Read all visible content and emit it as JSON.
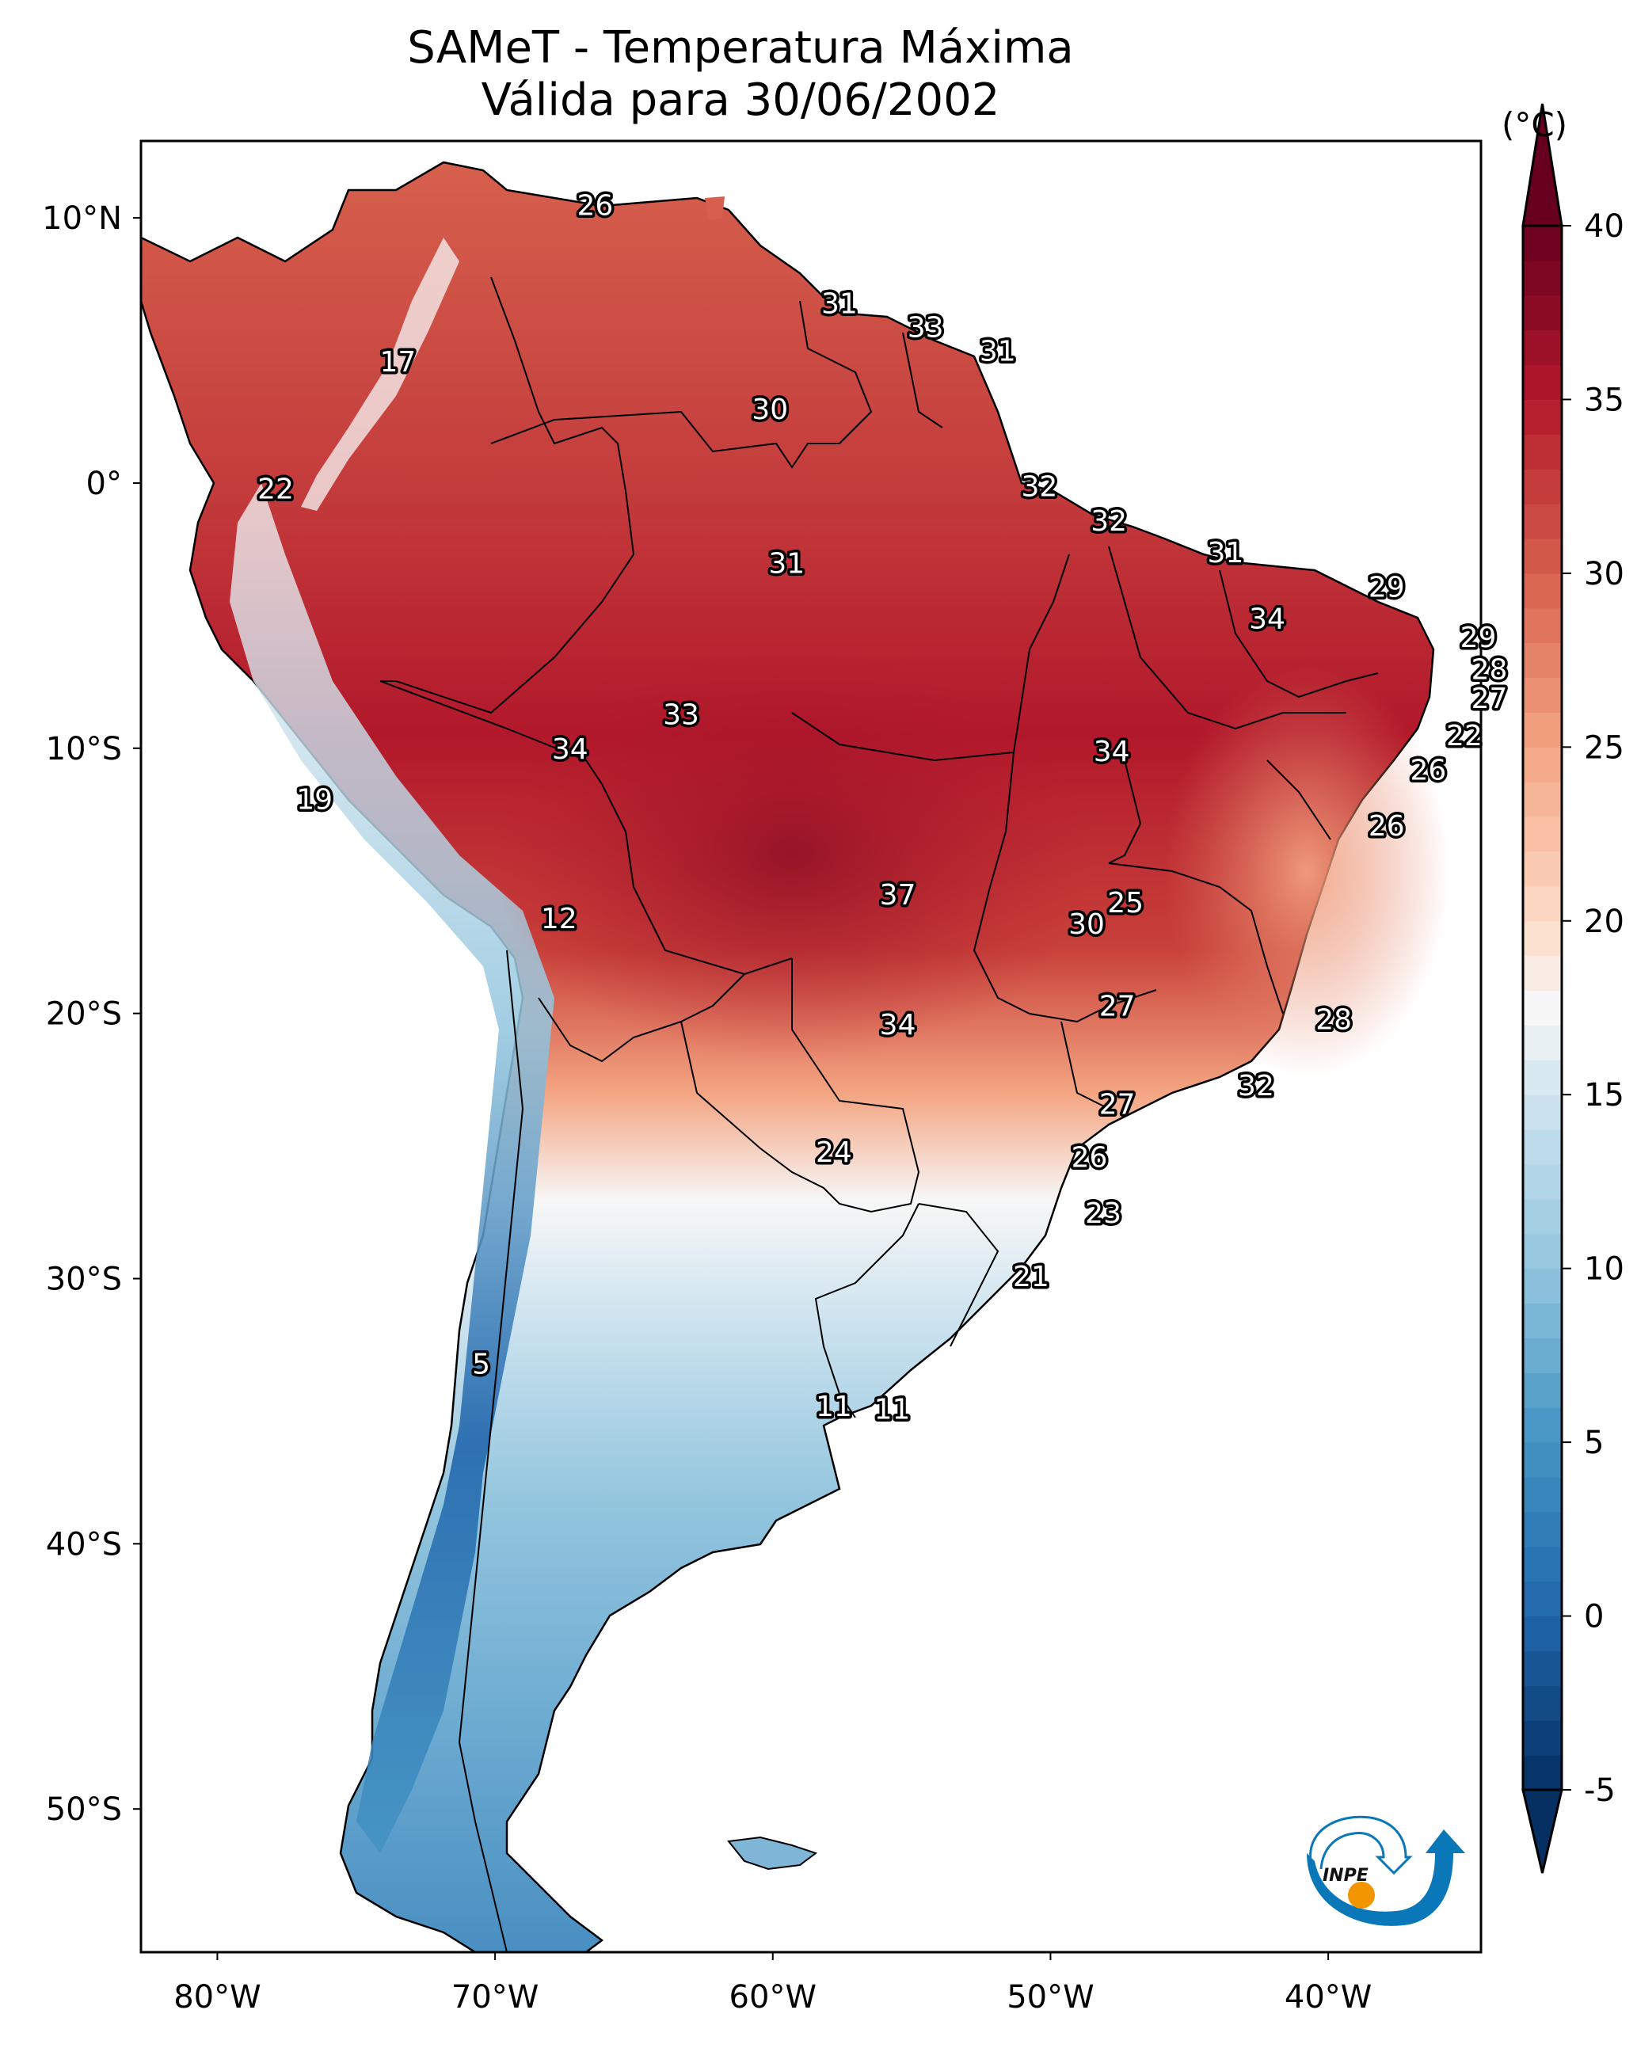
{
  "title": {
    "line1": "SAMeT - Temperatura Máxima",
    "line2": "Válida para 30/06/2002"
  },
  "logo": {
    "text": "INPE",
    "colors": {
      "swirl": "#0a78b8",
      "sun": "#f29500",
      "text": "#111111"
    }
  },
  "chart_data": {
    "type": "heatmap",
    "title": "SAMeT - Temperatura Máxima — Válida para 30/06/2002",
    "variable": "Maximum temperature",
    "unit_label": "(°C)",
    "colormap": "RdBu_r",
    "colorbar": {
      "min": -5,
      "max": 40,
      "step": 1,
      "extend": "both",
      "ticks": [
        -5,
        0,
        5,
        10,
        15,
        20,
        25,
        30,
        35,
        40
      ],
      "tick_labels": [
        "-5",
        "0",
        "5",
        "10",
        "15",
        "20",
        "25",
        "30",
        "35",
        "40"
      ],
      "stops": [
        {
          "value": -5,
          "color": "#053061"
        },
        {
          "value": 0,
          "color": "#2166ac"
        },
        {
          "value": 5,
          "color": "#4393c3"
        },
        {
          "value": 10,
          "color": "#92c5de"
        },
        {
          "value": 15,
          "color": "#d1e5f0"
        },
        {
          "value": 17.5,
          "color": "#f7f7f7"
        },
        {
          "value": 20,
          "color": "#fddbc7"
        },
        {
          "value": 25,
          "color": "#f4a582"
        },
        {
          "value": 30,
          "color": "#d6604d"
        },
        {
          "value": 35,
          "color": "#b2182b"
        },
        {
          "value": 40,
          "color": "#67001f"
        }
      ]
    },
    "xlim": [
      -82.75,
      -34.5
    ],
    "ylim": [
      -55.4,
      12.9
    ],
    "x_ticks": [
      -80,
      -70,
      -60,
      -50,
      -40
    ],
    "x_tick_labels": [
      "80°W",
      "70°W",
      "60°W",
      "50°W",
      "40°W"
    ],
    "y_ticks": [
      10,
      0,
      -10,
      -20,
      -30,
      -40,
      -50
    ],
    "y_tick_labels": [
      "10°N",
      "0°",
      "10°S",
      "20°S",
      "30°S",
      "40°S",
      "50°S"
    ],
    "grid": false,
    "annotations": [
      {
        "text": "26",
        "lon": -66.4,
        "lat": 10.5
      },
      {
        "text": "17",
        "lon": -73.5,
        "lat": 4.6
      },
      {
        "text": "22",
        "lon": -77.9,
        "lat": -0.2
      },
      {
        "text": "31",
        "lon": -57.6,
        "lat": 6.8
      },
      {
        "text": "33",
        "lon": -54.5,
        "lat": 5.9
      },
      {
        "text": "31",
        "lon": -51.9,
        "lat": 5.0
      },
      {
        "text": "30",
        "lon": -60.1,
        "lat": 2.8
      },
      {
        "text": "32",
        "lon": -50.4,
        "lat": -0.1
      },
      {
        "text": "32",
        "lon": -47.9,
        "lat": -1.4
      },
      {
        "text": "31",
        "lon": -43.7,
        "lat": -2.6
      },
      {
        "text": "29",
        "lon": -37.9,
        "lat": -3.9
      },
      {
        "text": "34",
        "lon": -42.2,
        "lat": -5.1
      },
      {
        "text": "29",
        "lon": -34.6,
        "lat": -5.8
      },
      {
        "text": "28",
        "lon": -34.2,
        "lat": -7.0
      },
      {
        "text": "27",
        "lon": -34.2,
        "lat": -8.1
      },
      {
        "text": "22",
        "lon": -35.1,
        "lat": -9.5
      },
      {
        "text": "26",
        "lon": -36.4,
        "lat": -10.8
      },
      {
        "text": "26",
        "lon": -37.9,
        "lat": -12.9
      },
      {
        "text": "31",
        "lon": -59.5,
        "lat": -3.0
      },
      {
        "text": "33",
        "lon": -63.3,
        "lat": -8.7
      },
      {
        "text": "34",
        "lon": -67.3,
        "lat": -10.0
      },
      {
        "text": "19",
        "lon": -76.5,
        "lat": -11.9
      },
      {
        "text": "34",
        "lon": -47.8,
        "lat": -10.1
      },
      {
        "text": "37",
        "lon": -55.5,
        "lat": -15.5
      },
      {
        "text": "25",
        "lon": -47.3,
        "lat": -15.8
      },
      {
        "text": "30",
        "lon": -48.7,
        "lat": -16.6
      },
      {
        "text": "12",
        "lon": -67.7,
        "lat": -16.4
      },
      {
        "text": "34",
        "lon": -55.5,
        "lat": -20.4
      },
      {
        "text": "27",
        "lon": -47.6,
        "lat": -19.7
      },
      {
        "text": "28",
        "lon": -39.8,
        "lat": -20.2
      },
      {
        "text": "32",
        "lon": -42.6,
        "lat": -22.7
      },
      {
        "text": "27",
        "lon": -47.6,
        "lat": -23.4
      },
      {
        "text": "24",
        "lon": -57.8,
        "lat": -25.2
      },
      {
        "text": "26",
        "lon": -48.6,
        "lat": -25.4
      },
      {
        "text": "23",
        "lon": -48.1,
        "lat": -27.5
      },
      {
        "text": "21",
        "lon": -50.7,
        "lat": -29.9
      },
      {
        "text": "5",
        "lon": -70.5,
        "lat": -33.2
      },
      {
        "text": "11",
        "lon": -57.8,
        "lat": -34.8
      },
      {
        "text": "11",
        "lon": -55.7,
        "lat": -34.9
      }
    ]
  }
}
